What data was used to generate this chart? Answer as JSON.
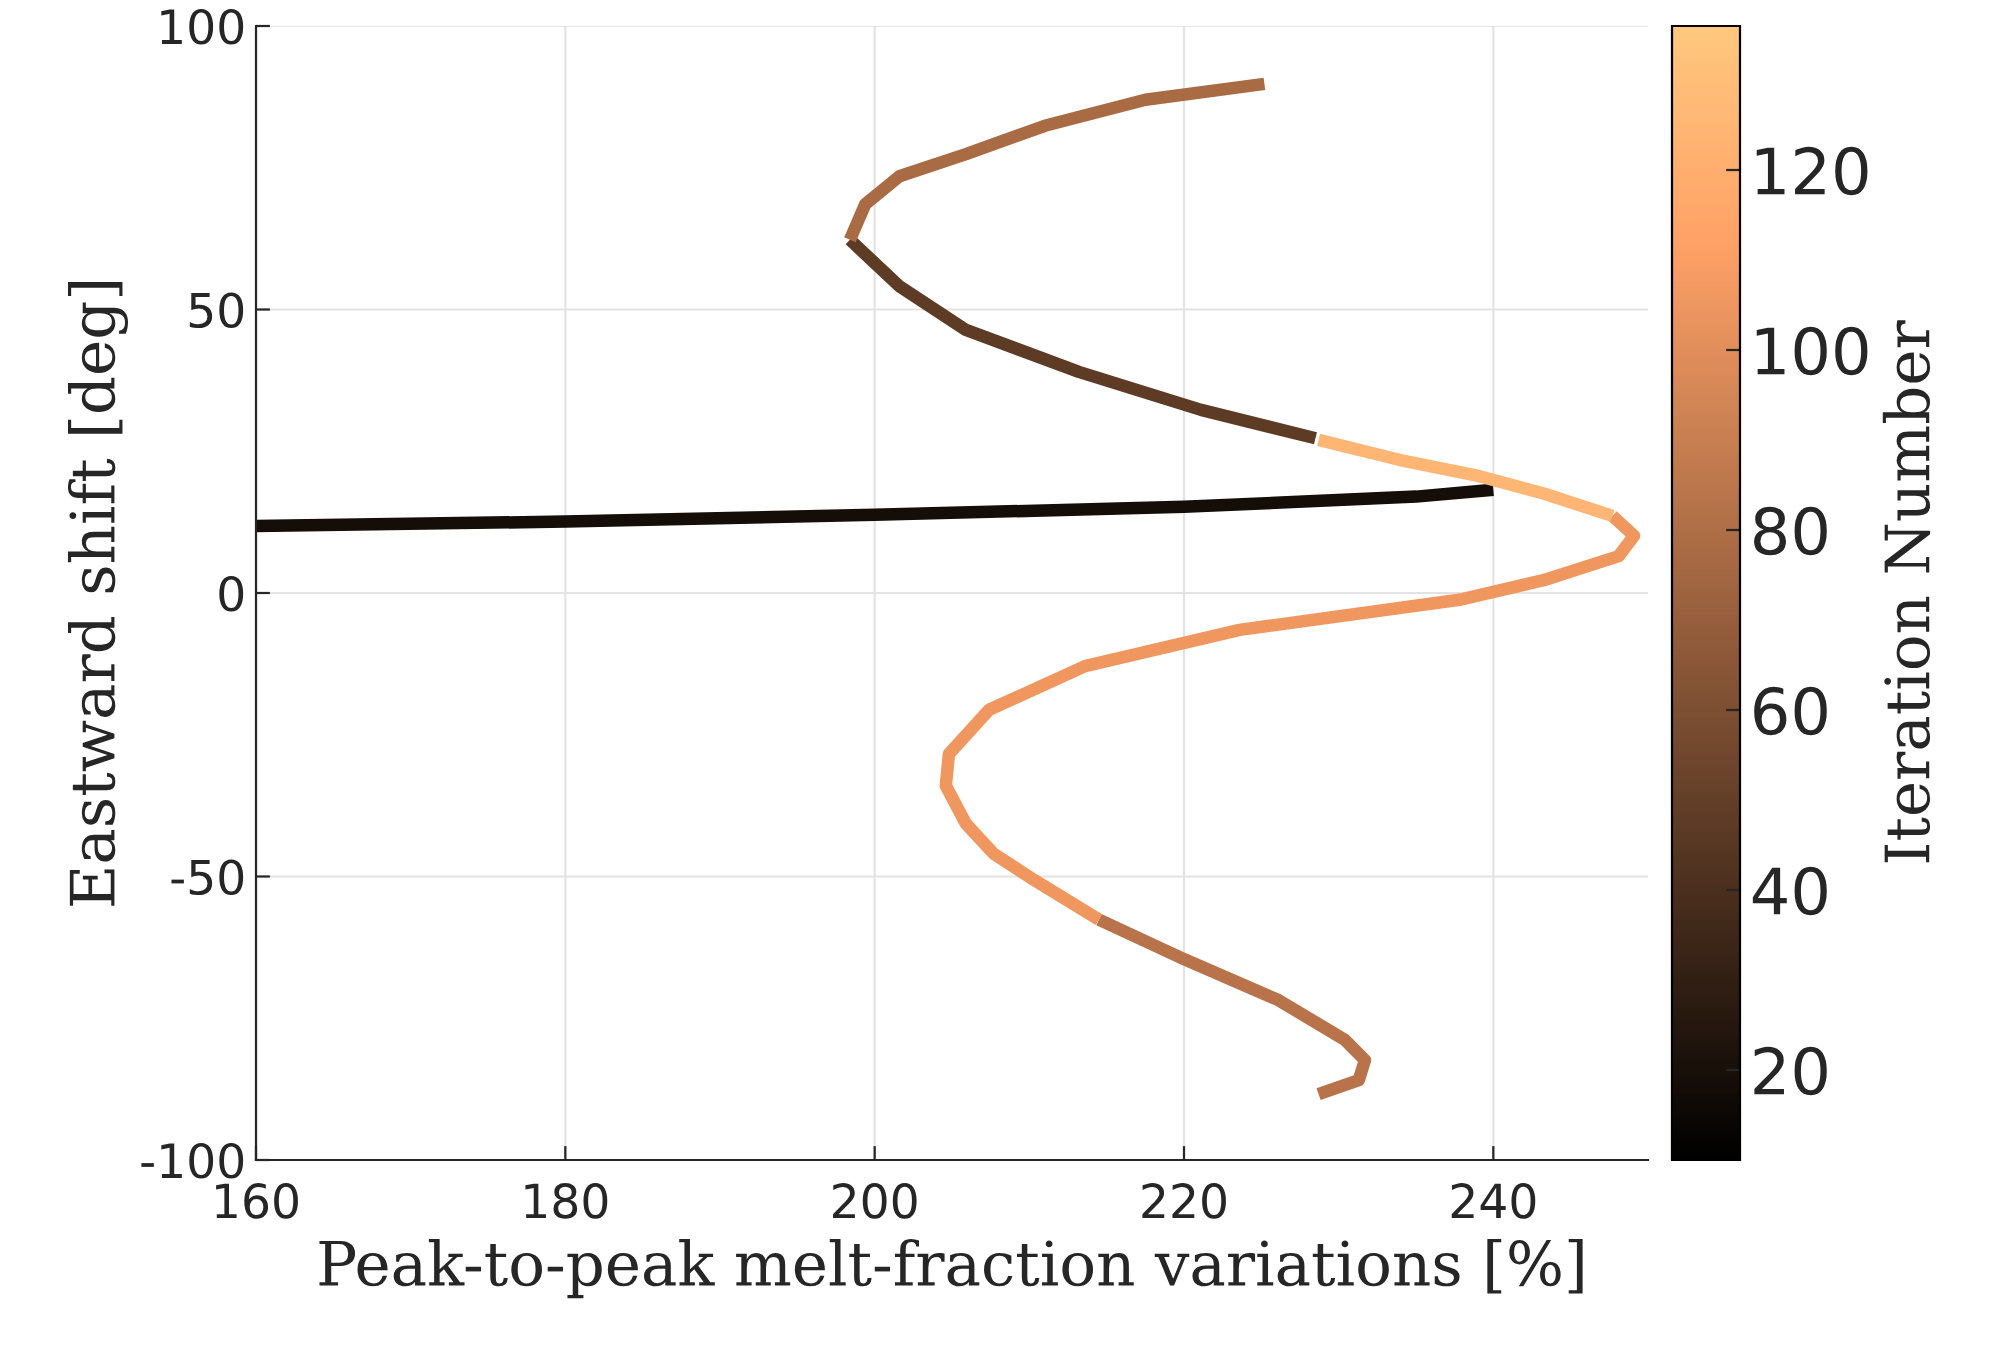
{
  "chart_data": {
    "type": "line",
    "xlabel": "Peak-to-peak melt-fraction variations [%]",
    "ylabel": "Eastward shift [deg]",
    "clabel": "Iteration Number",
    "xlim": [
      160,
      250
    ],
    "xticks": [
      160,
      180,
      200,
      220,
      240
    ],
    "ylim": [
      -100,
      100
    ],
    "yticks": [
      -100,
      -50,
      0,
      50,
      100
    ],
    "clim": [
      10,
      136
    ],
    "cticks": [
      20,
      40,
      60,
      80,
      100,
      120
    ],
    "grid": true,
    "series": [
      {
        "color": "#140d08",
        "x": [
          160,
          180,
          200,
          220,
          235,
          240
        ],
        "values": [
          11.8,
          12.6,
          13.8,
          15.2,
          17,
          18.2
        ]
      },
      {
        "color": "#5e3b25",
        "x": [
          228.5,
          221.1,
          213.2,
          205.9,
          201.6,
          198.4
        ],
        "values": [
          27.3,
          32.3,
          39.0,
          46.4,
          54.1,
          62.3
        ]
      },
      {
        "color": "#a86b44",
        "x": [
          198.4,
          199.4,
          201.6,
          205.9,
          211.0,
          217.5,
          225.2
        ],
        "values": [
          62.3,
          68.6,
          73.5,
          77.4,
          82.4,
          87,
          89.8
        ]
      },
      {
        "color": "#b8734a",
        "x": [
          228.7,
          231.3,
          231.7,
          230.4,
          226.1,
          220.1,
          214.5
        ],
        "values": [
          -88.4,
          -85.9,
          -82.4,
          -78.8,
          -71.8,
          -64.7,
          -57.6
        ]
      },
      {
        "color": "#f0965f",
        "x": [
          214.5,
          210.3,
          207.7,
          205.9,
          204.6,
          204.8,
          207.4,
          213.6,
          223.6,
          237.8,
          243.3,
          248.1,
          249.1,
          247.7
        ],
        "values": [
          -57.6,
          -50.6,
          -46,
          -40.7,
          -34,
          -28.4,
          -20.6,
          -12.9,
          -6.5,
          -1.2,
          2.3,
          6.5,
          10.1,
          13.6
        ]
      },
      {
        "color": "#ffb674",
        "x": [
          247.7,
          243.3,
          239.1,
          233.9,
          228.7
        ],
        "values": [
          13.6,
          17.5,
          20.6,
          23.5,
          27.0
        ]
      }
    ]
  }
}
